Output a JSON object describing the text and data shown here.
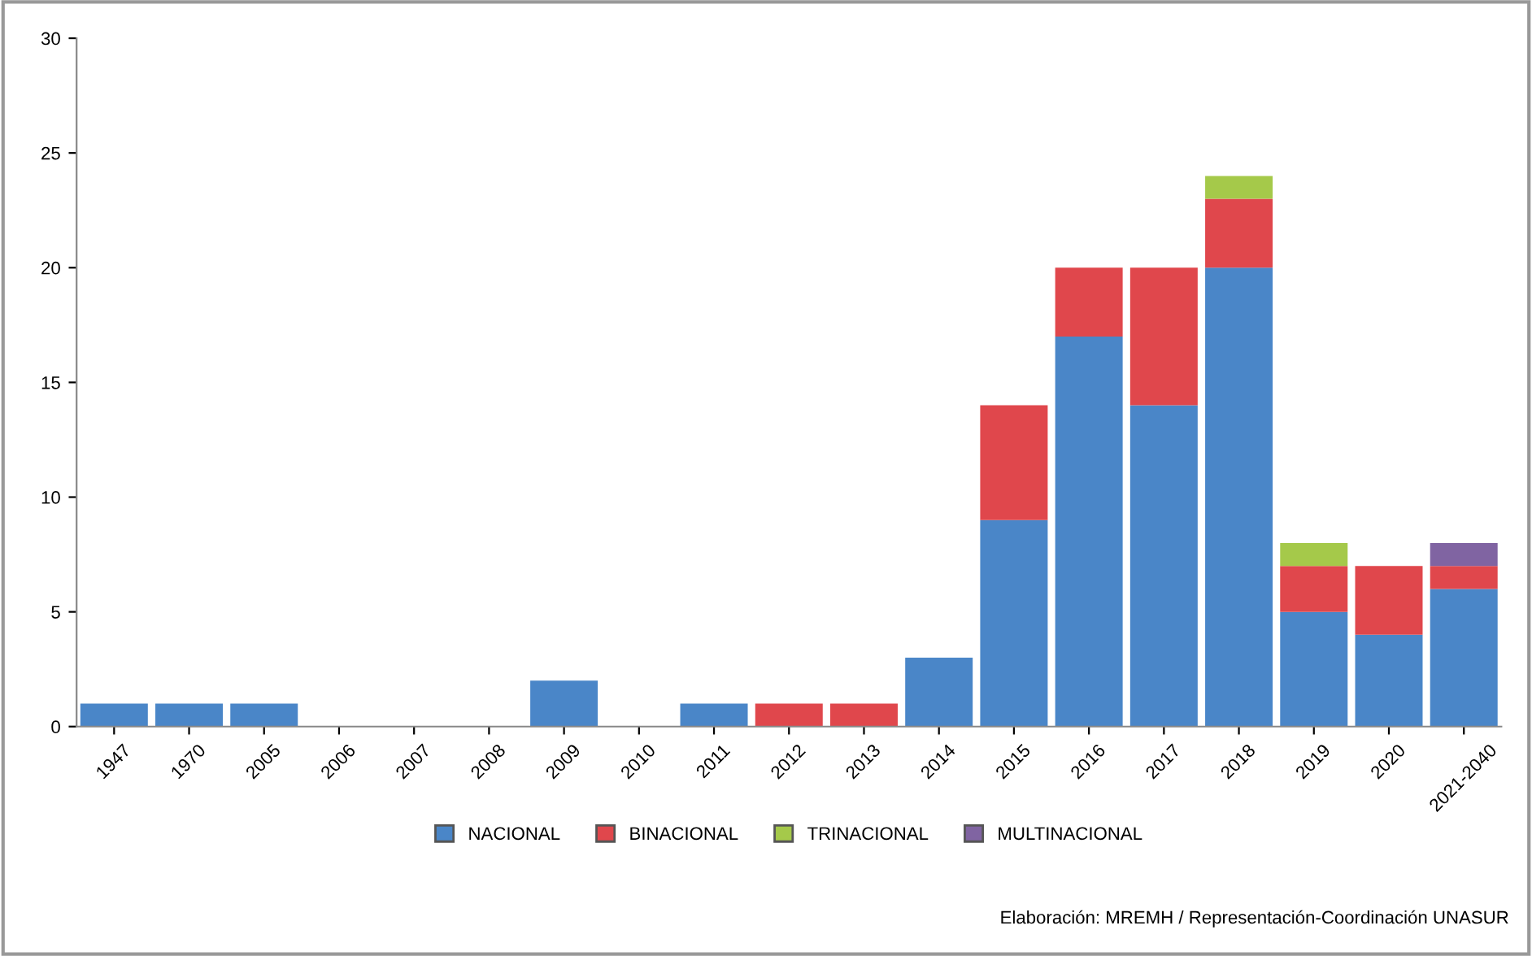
{
  "chart_data": {
    "type": "bar",
    "stacked": true,
    "categories": [
      "1947",
      "1970",
      "2005",
      "2006",
      "2007",
      "2008",
      "2009",
      "2010",
      "2011",
      "2012",
      "2013",
      "2014",
      "2015",
      "2016",
      "2017",
      "2018",
      "2019",
      "2020",
      "2021-2040"
    ],
    "series": [
      {
        "name": "NACIONAL",
        "color": "#4a86c8",
        "values": [
          1,
          1,
          1,
          null,
          null,
          null,
          2,
          null,
          1,
          null,
          null,
          3,
          9,
          17,
          14,
          20,
          5,
          4,
          6
        ]
      },
      {
        "name": "BINACIONAL",
        "color": "#e0474c",
        "values": [
          null,
          null,
          null,
          null,
          null,
          null,
          null,
          null,
          null,
          1,
          1,
          null,
          5,
          3,
          6,
          3,
          2,
          3,
          1
        ]
      },
      {
        "name": "TRINACIONAL",
        "color": "#a5c94a",
        "values": [
          null,
          null,
          null,
          null,
          null,
          null,
          null,
          null,
          null,
          null,
          null,
          null,
          null,
          null,
          null,
          1,
          1,
          null,
          null
        ]
      },
      {
        "name": "MULTINACIONAL",
        "color": "#8064a2",
        "values": [
          null,
          null,
          null,
          null,
          null,
          null,
          null,
          null,
          null,
          null,
          null,
          null,
          null,
          null,
          null,
          null,
          null,
          null,
          1
        ]
      }
    ],
    "ylim": [
      0,
      30
    ],
    "yticks": [
      0,
      5,
      10,
      15,
      20,
      25,
      30
    ],
    "grid": false,
    "legend": "bottom",
    "annotations": [
      "Elaboración: MREMH / Representación-Coordinación UNASUR"
    ]
  }
}
